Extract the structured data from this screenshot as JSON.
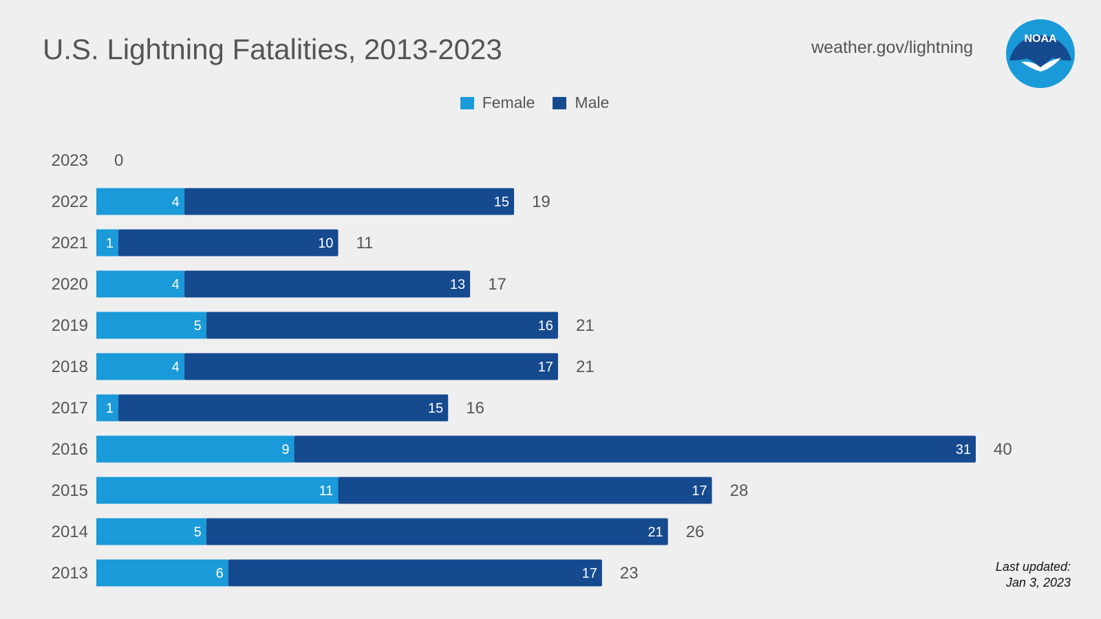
{
  "page": {
    "title": "U.S. Lightning Fatalities, 2013-2023",
    "source": "weather.gov/lightning",
    "logo_text": "NOAA",
    "last_updated_label": "Last updated:",
    "last_updated_date": "Jan 3, 2023"
  },
  "colors": {
    "female": "#1a9ad8",
    "male": "#164a8f",
    "text": "#555555",
    "background": "#efefef",
    "logo_outer": "#1a9ad8",
    "logo_inner": "#164a8f"
  },
  "chart_data": {
    "type": "bar",
    "orientation": "horizontal",
    "stacked": true,
    "categories": [
      "2023",
      "2022",
      "2021",
      "2020",
      "2019",
      "2018",
      "2017",
      "2016",
      "2015",
      "2014",
      "2013"
    ],
    "series": [
      {
        "name": "Female",
        "values": [
          0,
          4,
          1,
          4,
          5,
          4,
          1,
          9,
          11,
          5,
          6
        ]
      },
      {
        "name": "Male",
        "values": [
          0,
          15,
          10,
          13,
          16,
          17,
          15,
          31,
          17,
          21,
          17
        ]
      }
    ],
    "totals": [
      0,
      19,
      11,
      17,
      21,
      21,
      16,
      40,
      28,
      26,
      23
    ],
    "xlim": [
      0,
      40
    ],
    "legend_position": "top-center",
    "grid": false,
    "xlabel": "",
    "ylabel": ""
  }
}
